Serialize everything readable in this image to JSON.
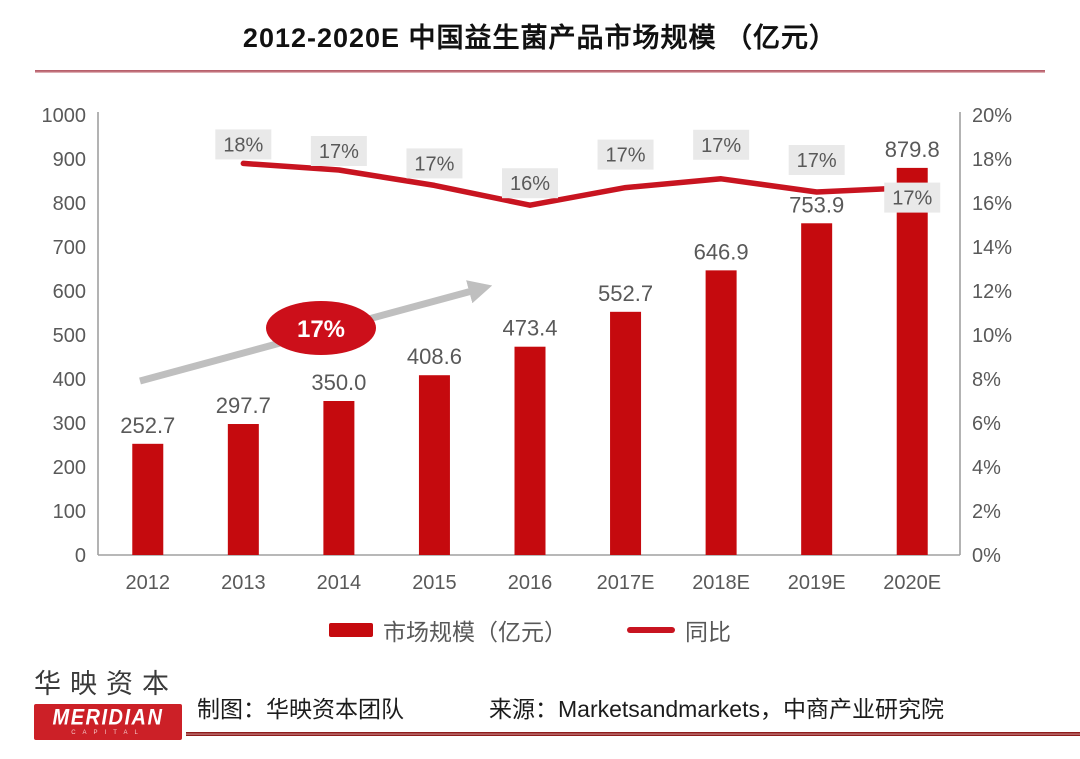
{
  "title": "2012-2020E 中国益生菌产品市场规模 （亿元）",
  "chart_data": {
    "type": "bar",
    "title": "2012-2020E 中国益生菌产品市场规模 （亿元）",
    "categories": [
      "2012",
      "2013",
      "2014",
      "2015",
      "2016",
      "2017E",
      "2018E",
      "2019E",
      "2020E"
    ],
    "series": [
      {
        "name": "市场规模（亿元）",
        "type": "bar",
        "axis": "left",
        "values": [
          252.7,
          297.7,
          350.0,
          408.6,
          473.4,
          552.7,
          646.9,
          753.9,
          879.8
        ],
        "value_labels": [
          "252.7",
          "297.7",
          "350.0",
          "408.6",
          "473.4",
          "552.7",
          "646.9",
          "753.9",
          "879.8"
        ]
      },
      {
        "name": "同比",
        "type": "line",
        "axis": "right",
        "values": [
          null,
          17.8,
          17.5,
          16.8,
          15.9,
          16.7,
          17.1,
          16.5,
          16.7
        ],
        "point_labels": [
          null,
          "18%",
          "17%",
          "17%",
          "16%",
          "17%",
          "17%",
          "17%",
          "17%"
        ]
      }
    ],
    "left_axis": {
      "min": 0,
      "max": 1000,
      "step": 100,
      "ticks": [
        "0",
        "100",
        "200",
        "300",
        "400",
        "500",
        "600",
        "700",
        "800",
        "900",
        "1000"
      ]
    },
    "right_axis": {
      "min": 0,
      "max": 20,
      "step": 2,
      "unit": "%",
      "ticks": [
        "0%",
        "2%",
        "4%",
        "6%",
        "8%",
        "10%",
        "12%",
        "14%",
        "16%",
        "18%",
        "20%"
      ]
    },
    "annotation": {
      "type": "trend-arrow",
      "label": "17%"
    },
    "grid": false,
    "legend_position": "bottom"
  },
  "legend": {
    "items": [
      {
        "label": "市场规模（亿元）",
        "swatch": "bar"
      },
      {
        "label": "同比",
        "swatch": "line"
      }
    ]
  },
  "footer": {
    "logo_cn": "华映资本",
    "logo_en": "MERIDIAN",
    "logo_en_sub": "CAPITAL",
    "credit": "制图：华映资本团队",
    "source": "来源：Marketsandmarkets，中商产业研究院"
  },
  "colors": {
    "bar": "#c50a0e",
    "line": "#c81420",
    "ellipse": "#cc0f1a",
    "logo_red": "#cc2027",
    "label_bg": "#e9e9e9",
    "text_gray": "#595959",
    "axis_line": "#a0a0a0",
    "arrow_gray": "#bfbfbf"
  }
}
